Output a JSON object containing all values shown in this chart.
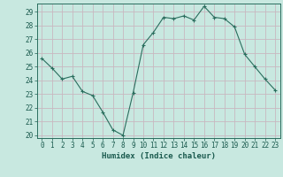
{
  "x": [
    0,
    1,
    2,
    3,
    4,
    5,
    6,
    7,
    8,
    9,
    10,
    11,
    12,
    13,
    14,
    15,
    16,
    17,
    18,
    19,
    20,
    21,
    22,
    23
  ],
  "y": [
    25.6,
    24.9,
    24.1,
    24.3,
    23.2,
    22.9,
    21.7,
    20.4,
    20.0,
    23.1,
    26.6,
    27.5,
    28.6,
    28.5,
    28.7,
    28.4,
    29.4,
    28.6,
    28.5,
    27.9,
    25.9,
    25.0,
    24.1,
    23.3
  ],
  "line_color": "#2a6e5e",
  "marker": "P",
  "marker_size": 2.5,
  "bg_color": "#c8e8e0",
  "grid_color": "#c8b8c0",
  "spine_color": "#2a6e5e",
  "xlabel": "Humidex (Indice chaleur)",
  "ylim_min": 19.8,
  "ylim_max": 29.6,
  "yticks": [
    20,
    21,
    22,
    23,
    24,
    25,
    26,
    27,
    28,
    29
  ],
  "xticks": [
    0,
    1,
    2,
    3,
    4,
    5,
    6,
    7,
    8,
    9,
    10,
    11,
    12,
    13,
    14,
    15,
    16,
    17,
    18,
    19,
    20,
    21,
    22,
    23
  ],
  "tick_color": "#1a5a4e",
  "label_fontsize": 5.5,
  "xlabel_fontsize": 6.5
}
